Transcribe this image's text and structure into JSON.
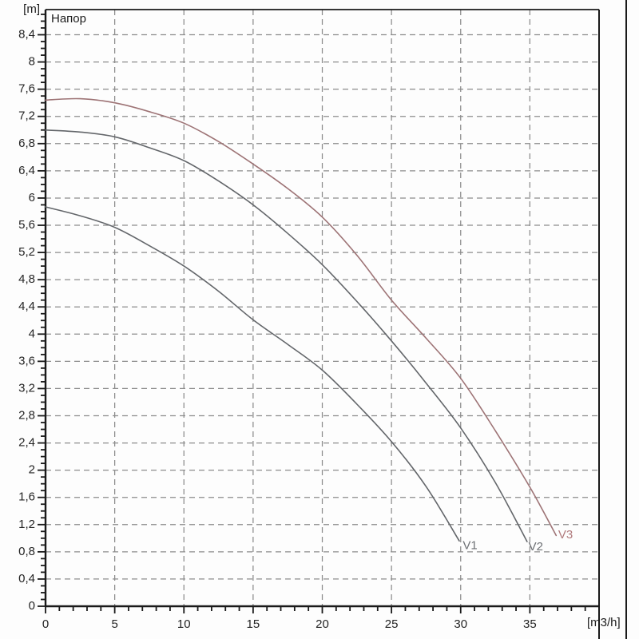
{
  "header": {
    "title": "Напор",
    "y_unit_label": "[m]",
    "x_unit_label": "[m3/h]"
  },
  "colors": {
    "background": "#fdfdfd",
    "axis": "#1a1a1a",
    "grid": "#8c8c8c",
    "tick_text": "#242424",
    "curve_gray": "#63666a",
    "curve_red": "#9d7375"
  },
  "chart_data": {
    "type": "line",
    "title": "Напор",
    "ylabel": "[m]",
    "xlabel": "[m3/h]",
    "xlim": [
      0,
      40
    ],
    "ylim": [
      0,
      8.77
    ],
    "x_major_tick_step": 5,
    "x_minor_tick_step": 1,
    "y_major_tick_step": 0.4,
    "y_minor_tick_step": 0.1,
    "grid": "dashed gridlines at every major tick, both axes",
    "legend": "curve labels V1 V2 V3 drawn at curve ends, no legend box",
    "x_ticks": [
      {
        "v": 0,
        "label": "0"
      },
      {
        "v": 5,
        "label": "5"
      },
      {
        "v": 10,
        "label": "10"
      },
      {
        "v": 15,
        "label": "15"
      },
      {
        "v": 20,
        "label": "20"
      },
      {
        "v": 25,
        "label": "25"
      },
      {
        "v": 30,
        "label": "30"
      },
      {
        "v": 35,
        "label": "35"
      }
    ],
    "y_ticks": [
      {
        "v": 0,
        "label": "0"
      },
      {
        "v": 0.4,
        "label": "0,4"
      },
      {
        "v": 0.8,
        "label": "0,8"
      },
      {
        "v": 1.2,
        "label": "1,2"
      },
      {
        "v": 1.6,
        "label": "1,6"
      },
      {
        "v": 2,
        "label": "2"
      },
      {
        "v": 2.4,
        "label": "2,4"
      },
      {
        "v": 2.8,
        "label": "2,8"
      },
      {
        "v": 3.2,
        "label": "3,2"
      },
      {
        "v": 3.6,
        "label": "3,6"
      },
      {
        "v": 4,
        "label": "4"
      },
      {
        "v": 4.4,
        "label": "4,4"
      },
      {
        "v": 4.8,
        "label": "4,8"
      },
      {
        "v": 5.2,
        "label": "5,2"
      },
      {
        "v": 5.6,
        "label": "5,6"
      },
      {
        "v": 6,
        "label": "6"
      },
      {
        "v": 6.4,
        "label": "6,4"
      },
      {
        "v": 6.8,
        "label": "6,8"
      },
      {
        "v": 7.2,
        "label": "7,2"
      },
      {
        "v": 7.6,
        "label": "7,6"
      },
      {
        "v": 8,
        "label": "8"
      },
      {
        "v": 8.4,
        "label": "8,4"
      }
    ],
    "series": [
      {
        "name": "V1",
        "color": "#63666a",
        "label_color": "#6e7175",
        "label_at": [
          30.15,
          0.84
        ],
        "points": [
          [
            0,
            5.87
          ],
          [
            2.5,
            5.74
          ],
          [
            5,
            5.57
          ],
          [
            7.5,
            5.3
          ],
          [
            10,
            5.0
          ],
          [
            12.5,
            4.63
          ],
          [
            15,
            4.21
          ],
          [
            17.5,
            3.85
          ],
          [
            20,
            3.47
          ],
          [
            22.5,
            2.97
          ],
          [
            25,
            2.42
          ],
          [
            27.5,
            1.76
          ],
          [
            29.9,
            0.96
          ]
        ]
      },
      {
        "name": "V2",
        "color": "#63666a",
        "label_color": "#6e7175",
        "label_at": [
          34.9,
          0.82
        ],
        "points": [
          [
            0,
            7.0
          ],
          [
            2.5,
            6.97
          ],
          [
            5,
            6.9
          ],
          [
            7.5,
            6.74
          ],
          [
            10,
            6.55
          ],
          [
            12.5,
            6.25
          ],
          [
            15,
            5.9
          ],
          [
            17.5,
            5.48
          ],
          [
            20,
            5.02
          ],
          [
            22.5,
            4.48
          ],
          [
            25,
            3.9
          ],
          [
            27.5,
            3.28
          ],
          [
            30,
            2.62
          ],
          [
            32.5,
            1.82
          ],
          [
            34.8,
            0.95
          ]
        ]
      },
      {
        "name": "V3",
        "color": "#9d7375",
        "label_color": "#b07a7c",
        "label_at": [
          37.05,
          1.0
        ],
        "points": [
          [
            0,
            7.44
          ],
          [
            2.5,
            7.46
          ],
          [
            5,
            7.4
          ],
          [
            7.5,
            7.27
          ],
          [
            10,
            7.1
          ],
          [
            12.5,
            6.83
          ],
          [
            15,
            6.5
          ],
          [
            17.5,
            6.14
          ],
          [
            20,
            5.72
          ],
          [
            22.5,
            5.16
          ],
          [
            25,
            4.5
          ],
          [
            27.5,
            3.94
          ],
          [
            30,
            3.35
          ],
          [
            32.5,
            2.58
          ],
          [
            35,
            1.75
          ],
          [
            36.9,
            1.04
          ]
        ]
      }
    ]
  }
}
